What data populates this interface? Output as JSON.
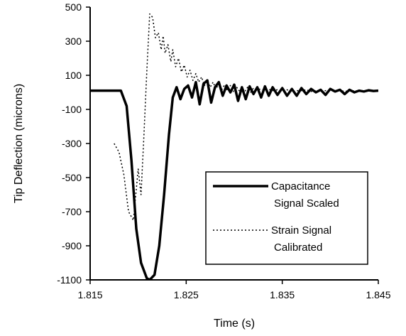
{
  "chart_data": {
    "type": "line",
    "title": "",
    "xlabel": "Time (s)",
    "ylabel": "Tip Deflection (microns)",
    "xlim": [
      1.815,
      1.845
    ],
    "ylim": [
      -1100,
      500
    ],
    "x_ticks": [
      1.815,
      1.825,
      1.835,
      1.845
    ],
    "x_tick_labels": [
      "1.815",
      "1.825",
      "1.835",
      "1.845"
    ],
    "y_ticks": [
      500,
      300,
      100,
      -100,
      -300,
      -500,
      -700,
      -900,
      -1100
    ],
    "y_tick_labels": [
      "500",
      "300",
      "100",
      "-100",
      "-300",
      "-500",
      "-700",
      "-900",
      "-1100"
    ],
    "grid": false,
    "legend_position": "bottom-right",
    "series": [
      {
        "name": "Capacitance Signal Scaled",
        "style": "solid-thick",
        "color": "#000000",
        "x": [
          1.815,
          1.8182,
          1.8188,
          1.8193,
          1.8198,
          1.8203,
          1.8209,
          1.8212,
          1.8217,
          1.8222,
          1.8227,
          1.8232,
          1.8236,
          1.824,
          1.8244,
          1.8248,
          1.8252,
          1.8256,
          1.826,
          1.8264,
          1.8268,
          1.8272,
          1.8276,
          1.828,
          1.8284,
          1.8288,
          1.8292,
          1.8296,
          1.83,
          1.8304,
          1.8308,
          1.8312,
          1.8316,
          1.832,
          1.8324,
          1.8328,
          1.8332,
          1.8336,
          1.834,
          1.8345,
          1.835,
          1.8355,
          1.836,
          1.8365,
          1.837,
          1.8375,
          1.838,
          1.8385,
          1.839,
          1.8395,
          1.84,
          1.8405,
          1.841,
          1.8415,
          1.842,
          1.8425,
          1.843,
          1.8435,
          1.844,
          1.8445,
          1.845
        ],
        "y": [
          10,
          10,
          -80,
          -400,
          -800,
          -1000,
          -1090,
          -1100,
          -1070,
          -900,
          -600,
          -250,
          -30,
          30,
          -40,
          20,
          40,
          -30,
          60,
          -70,
          50,
          70,
          -60,
          30,
          60,
          -20,
          40,
          0,
          45,
          -50,
          30,
          -40,
          35,
          -10,
          30,
          -30,
          35,
          -20,
          30,
          -15,
          25,
          -20,
          20,
          -20,
          25,
          -10,
          20,
          0,
          15,
          -15,
          20,
          5,
          15,
          -10,
          15,
          0,
          10,
          5,
          12,
          8,
          10
        ]
      },
      {
        "name": "Strain Signal Calibrated",
        "style": "dotted",
        "color": "#000000",
        "x": [
          1.8175,
          1.818,
          1.8185,
          1.819,
          1.8195,
          1.82,
          1.8203,
          1.8206,
          1.8209,
          1.8212,
          1.8215,
          1.8218,
          1.8221,
          1.8224,
          1.8226,
          1.8228,
          1.8231,
          1.8234,
          1.8236,
          1.8239,
          1.8242,
          1.8245,
          1.8248,
          1.8251,
          1.8254,
          1.8257,
          1.826,
          1.8263,
          1.8266,
          1.8269,
          1.8272,
          1.8275,
          1.8278,
          1.8281,
          1.8284,
          1.8287,
          1.829,
          1.8293,
          1.8296,
          1.8299,
          1.8302,
          1.8305,
          1.8308,
          1.8311,
          1.8314,
          1.8317,
          1.832,
          1.8325,
          1.833,
          1.8335,
          1.834,
          1.8345,
          1.835,
          1.8355,
          1.836,
          1.8365,
          1.837,
          1.8375,
          1.838,
          1.8385,
          1.839,
          1.8395,
          1.84,
          1.8405,
          1.841,
          1.8415,
          1.842,
          1.8425,
          1.843,
          1.8435,
          1.844,
          1.8445,
          1.845
        ],
        "y": [
          -300,
          -350,
          -480,
          -700,
          -750,
          -450,
          -600,
          -250,
          120,
          460,
          440,
          320,
          350,
          250,
          330,
          230,
          280,
          180,
          250,
          150,
          200,
          120,
          160,
          90,
          130,
          70,
          110,
          60,
          90,
          40,
          70,
          30,
          60,
          20,
          50,
          15,
          45,
          10,
          40,
          5,
          35,
          10,
          30,
          5,
          30,
          0,
          25,
          20,
          15,
          20,
          10,
          15,
          10,
          15,
          5,
          10,
          10,
          15,
          5,
          10,
          5,
          10,
          10,
          8,
          12,
          5,
          10,
          8,
          10,
          6,
          8,
          10,
          10
        ]
      }
    ],
    "legend": [
      {
        "label": "Capacitance\nSignal Scaled",
        "style": "solid-thick"
      },
      {
        "label": "Strain Signal\nCalibrated",
        "style": "dotted"
      }
    ]
  }
}
